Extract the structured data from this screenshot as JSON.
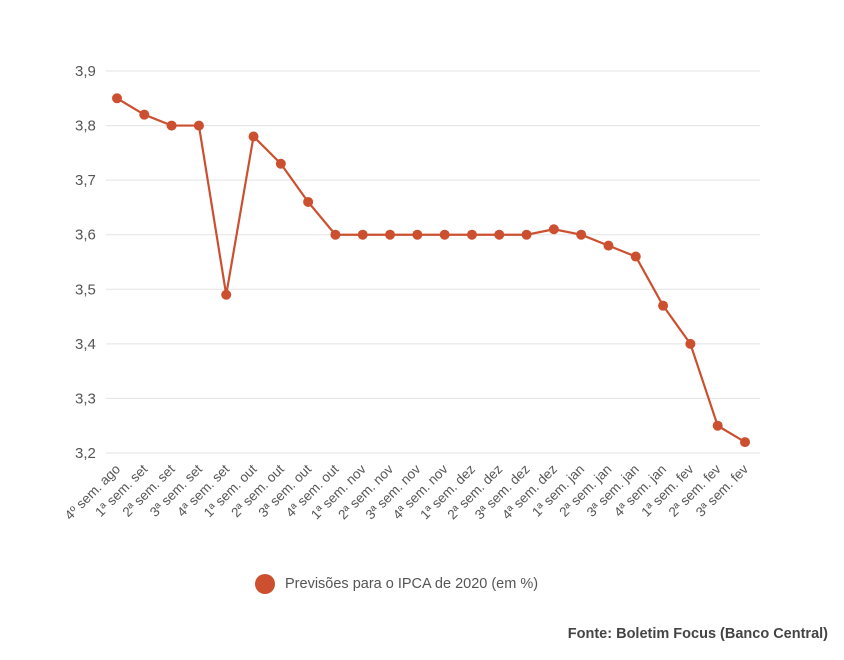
{
  "chart_data": {
    "type": "line",
    "categories": [
      "4º sem. ago",
      "1ª sem. set",
      "2ª sem. set",
      "3ª sem. set",
      "4ª sem. set",
      "1ª sem. out",
      "2ª sem. out",
      "3ª sem. out",
      "4ª sem. out",
      "1ª sem. nov",
      "2ª sem. nov",
      "3ª sem. nov",
      "4ª sem. nov",
      "1ª sem. dez",
      "2ª sem. dez",
      "3ª sem. dez",
      "4ª sem. dez",
      "1ª sem. jan",
      "2ª sem. jan",
      "3ª sem. jan",
      "4ª sem. jan",
      "1ª sem. fev",
      "2ª sem. fev",
      "3ª sem. fev"
    ],
    "series": [
      {
        "name": "Previsões para o IPCA de 2020 (em %)",
        "values": [
          3.85,
          3.82,
          3.8,
          3.8,
          3.49,
          3.78,
          3.73,
          3.66,
          3.6,
          3.6,
          3.6,
          3.6,
          3.6,
          3.6,
          3.6,
          3.6,
          3.61,
          3.6,
          3.58,
          3.56,
          3.47,
          3.4,
          3.25,
          3.22
        ]
      }
    ],
    "yticks": [
      "3,2",
      "3,3",
      "3,4",
      "3,5",
      "3,6",
      "3,7",
      "3,8",
      "3,9"
    ],
    "ylim": [
      3.2,
      3.9
    ],
    "grid": true,
    "legend_position": "bottom-center",
    "color": "#cc5030",
    "source": "Fonte: Boletim Focus (Banco Central)"
  }
}
